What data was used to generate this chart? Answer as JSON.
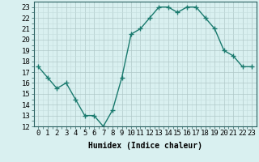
{
  "x": [
    0,
    1,
    2,
    3,
    4,
    5,
    6,
    7,
    8,
    9,
    10,
    11,
    12,
    13,
    14,
    15,
    16,
    17,
    18,
    19,
    20,
    21,
    22,
    23
  ],
  "y": [
    17.5,
    16.5,
    15.5,
    16.0,
    14.5,
    13.0,
    13.0,
    12.0,
    13.5,
    16.5,
    20.5,
    21.0,
    22.0,
    23.0,
    23.0,
    22.5,
    23.0,
    23.0,
    22.0,
    21.0,
    19.0,
    18.5,
    17.5,
    17.5
  ],
  "line_color": "#1a7a6e",
  "marker": "+",
  "marker_size": 4,
  "bg_color": "#d9f0f0",
  "grid_color_major": "#b0c8c8",
  "grid_color_minor": "#c4dede",
  "xlabel": "Humidex (Indice chaleur)",
  "ylim": [
    12,
    23.5
  ],
  "xlim": [
    -0.5,
    23.5
  ],
  "yticks": [
    12,
    13,
    14,
    15,
    16,
    17,
    18,
    19,
    20,
    21,
    22,
    23
  ],
  "xticks": [
    0,
    1,
    2,
    3,
    4,
    5,
    6,
    7,
    8,
    9,
    10,
    11,
    12,
    13,
    14,
    15,
    16,
    17,
    18,
    19,
    20,
    21,
    22,
    23
  ],
  "xlabel_fontsize": 7,
  "tick_fontsize": 6.5,
  "linewidth": 1.0
}
